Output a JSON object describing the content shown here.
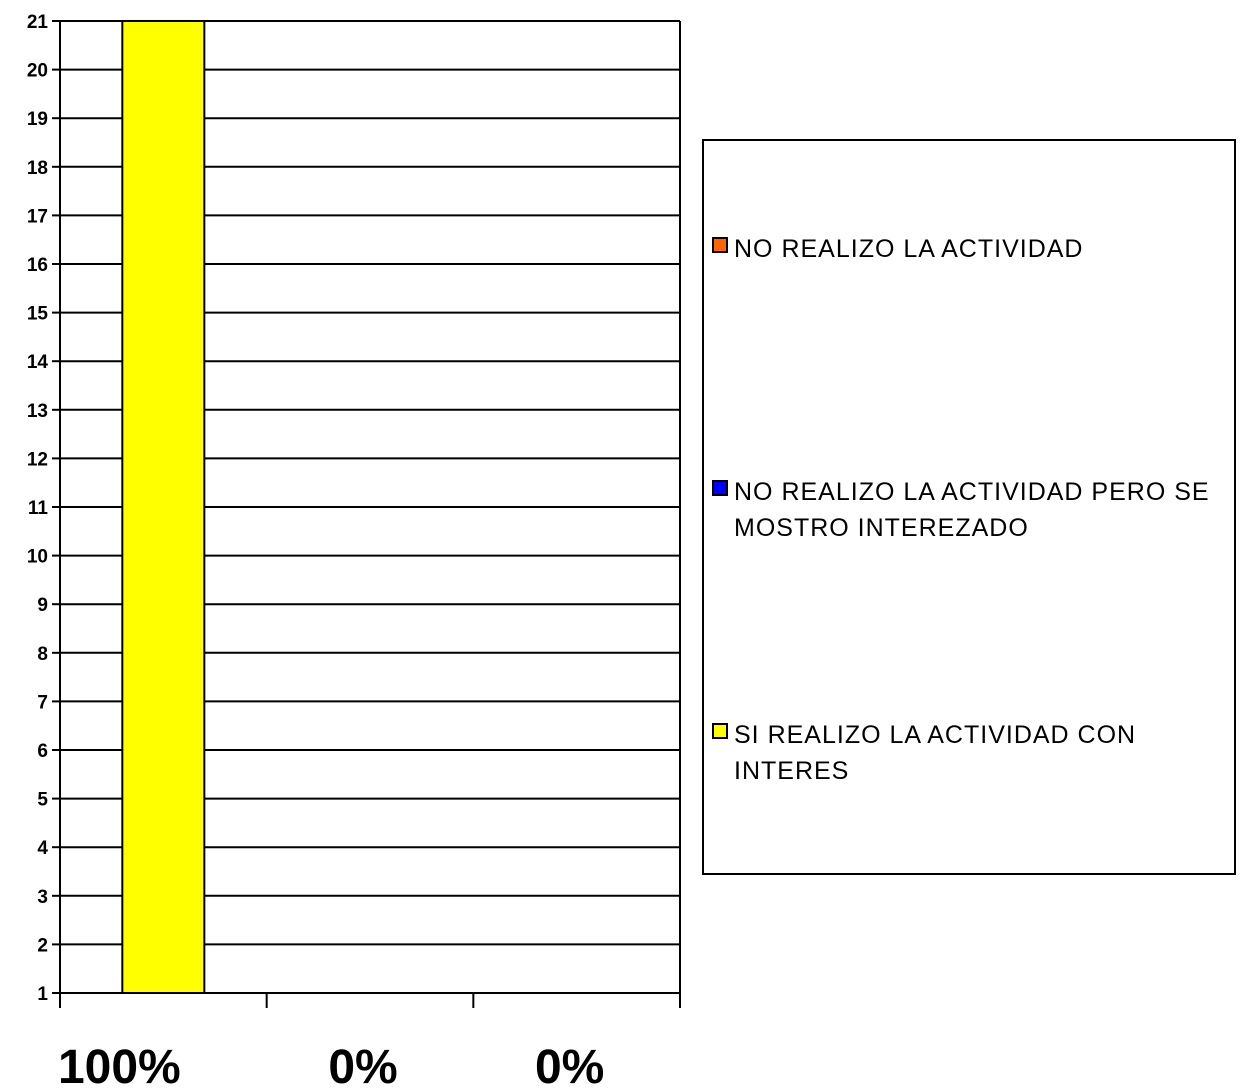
{
  "chart_data": {
    "type": "bar",
    "categories": [
      "100%",
      "0%",
      "0%"
    ],
    "series": [
      {
        "name": "SI REALIZO LA ACTIVIDAD CON INTERES",
        "color": "#FFFF00",
        "values": [
          21,
          0,
          0
        ]
      },
      {
        "name": "NO REALIZO LA ACTIVIDAD PERO SE MOSTRO INTEREZADO",
        "color": "#0000FF",
        "values": [
          0,
          0,
          0
        ]
      },
      {
        "name": "NO REALIZO LA ACTIVIDAD",
        "color": "#FF6600",
        "values": [
          0,
          0,
          0
        ]
      }
    ],
    "ylim": [
      1,
      21
    ],
    "yticks": [
      1,
      2,
      3,
      4,
      5,
      6,
      7,
      8,
      9,
      10,
      11,
      12,
      13,
      14,
      15,
      16,
      17,
      18,
      19,
      20,
      21
    ],
    "grid": true,
    "legend_position": "right"
  },
  "legend": {
    "items": [
      {
        "label": "NO REALIZO LA ACTIVIDAD",
        "color": "#FF6600"
      },
      {
        "label": "NO REALIZO LA ACTIVIDAD PERO SE MOSTRO INTEREZADO",
        "color": "#0000FF"
      },
      {
        "label": "SI REALIZO LA ACTIVIDAD CON INTERES",
        "color": "#FFFF00"
      }
    ]
  }
}
